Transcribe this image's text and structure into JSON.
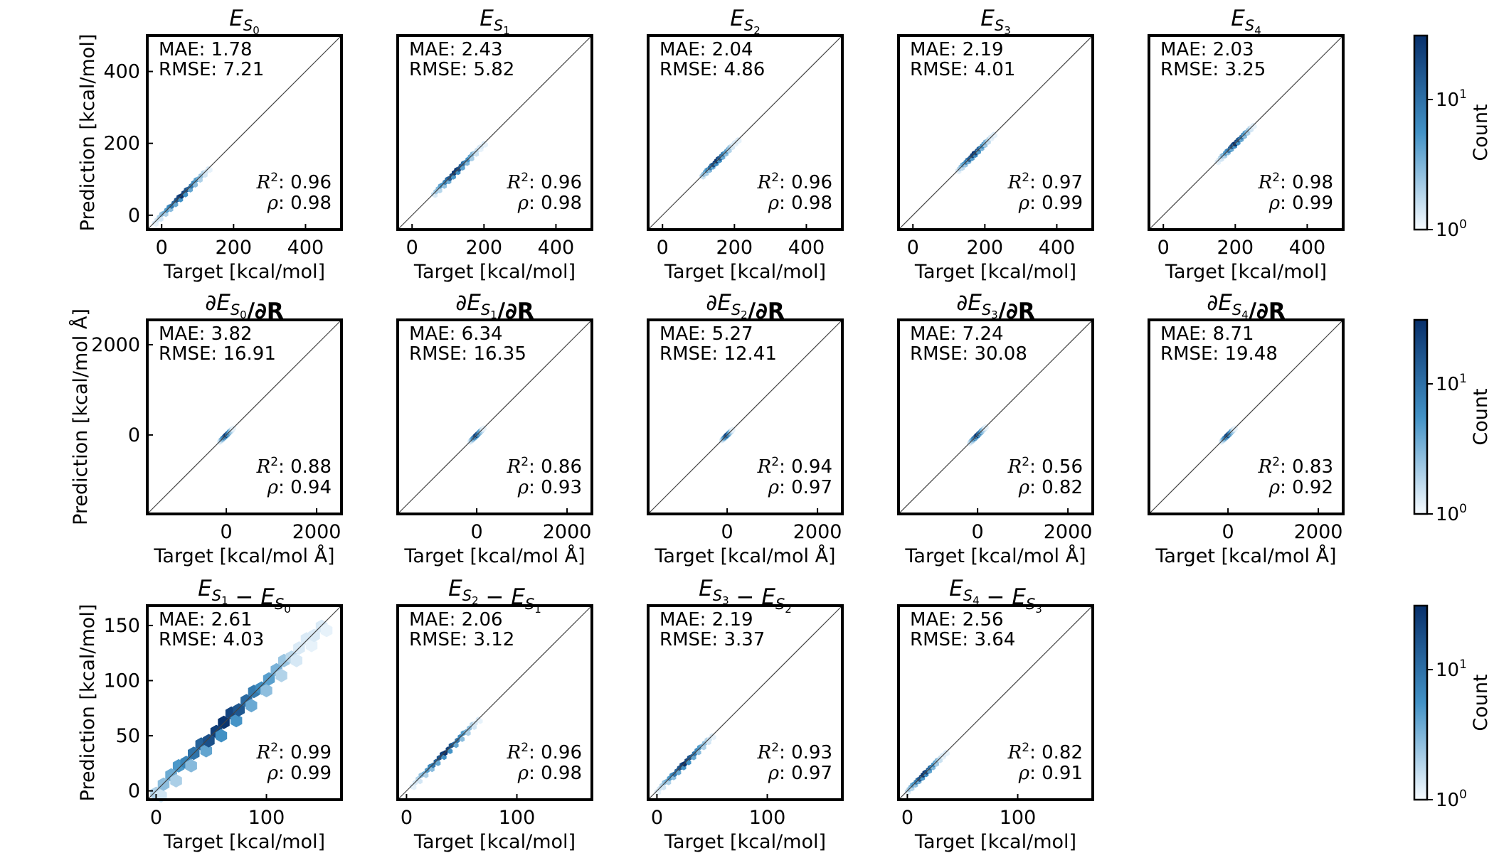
{
  "colors": {
    "low": "#f7fbff",
    "high": "#08306b",
    "mid": "#4292c6",
    "axes": "#000000"
  },
  "colorbar": {
    "label": "Count",
    "tick_high": "10",
    "tick_high_exp": "1",
    "tick_low": "10",
    "tick_low_exp": "0"
  },
  "rows": [
    {
      "ylabel": "Prediction [kcal/mol]",
      "xlabel": "Target [kcal/mol]",
      "lim": [
        -40,
        500
      ],
      "xticks": [
        "0",
        "200",
        "400"
      ],
      "yticks": [
        "0",
        "200",
        "400"
      ],
      "tickvals": [
        0,
        200,
        400
      ]
    },
    {
      "ylabel": "Prediction [kcal/mol Å]",
      "xlabel": "Target [kcal/mol Å]",
      "lim": [
        -1750,
        2550
      ],
      "xticks": [
        "0",
        "2000"
      ],
      "yticks": [
        "0",
        "2000"
      ],
      "tickvals": [
        0,
        2000
      ]
    },
    {
      "ylabel": "Prediction [kcal/mol]",
      "xlabel": "Target [kcal/mol]",
      "lim": [
        -8,
        168
      ],
      "xticks": [
        "0",
        "100"
      ],
      "yticks": [
        "0",
        "50",
        "100",
        "150"
      ],
      "xtickvals": [
        0,
        100
      ],
      "ytickvals": [
        0,
        50,
        100,
        150
      ]
    }
  ],
  "chart_data": [
    {
      "type": "heatmap",
      "panel": "row1-col1",
      "title": [
        "E",
        "S",
        "0",
        ""
      ],
      "mae": "MAE: 1.78",
      "rmse": "RMSE: 7.21",
      "r2": ": 0.96",
      "rho": ": 0.98",
      "center": [
        55,
        50
      ],
      "spread": [
        -20,
        130
      ]
    },
    {
      "type": "heatmap",
      "panel": "row1-col2",
      "title": [
        "E",
        "S",
        "1",
        ""
      ],
      "mae": "MAE: 2.43",
      "rmse": "RMSE: 5.82",
      "r2": ": 0.96",
      "rho": ": 0.98",
      "center": [
        120,
        115
      ],
      "spread": [
        60,
        200
      ]
    },
    {
      "type": "heatmap",
      "panel": "row1-col3",
      "title": [
        "E",
        "S",
        "2",
        ""
      ],
      "mae": "MAE: 2.04",
      "rmse": "RMSE: 4.86",
      "r2": ": 0.96",
      "rho": ": 0.98",
      "center": [
        150,
        150
      ],
      "spread": [
        110,
        210
      ]
    },
    {
      "type": "heatmap",
      "panel": "row1-col4",
      "title": [
        "E",
        "S",
        "3",
        ""
      ],
      "mae": "MAE: 2.19",
      "rmse": "RMSE: 4.01",
      "r2": ": 0.97",
      "rho": ": 0.99",
      "center": [
        170,
        170
      ],
      "spread": [
        125,
        225
      ]
    },
    {
      "type": "heatmap",
      "panel": "row1-col5",
      "title": [
        "E",
        "S",
        "4",
        ""
      ],
      "mae": "MAE: 2.03",
      "rmse": "RMSE: 3.25",
      "r2": ": 0.98",
      "rho": ": 0.99",
      "center": [
        200,
        195
      ],
      "spread": [
        150,
        250
      ]
    },
    {
      "type": "heatmap",
      "panel": "row2-col1",
      "title": [
        "∂E",
        "S",
        "0",
        "/∂R"
      ],
      "mae": "MAE: 3.82",
      "rmse": "RMSE: 16.91",
      "r2": ": 0.88",
      "rho": ": 0.94",
      "center": [
        0,
        0
      ],
      "spread": [
        -150,
        150
      ]
    },
    {
      "type": "heatmap",
      "panel": "row2-col2",
      "title": [
        "∂E",
        "S",
        "1",
        "/∂R"
      ],
      "mae": "MAE: 6.34",
      "rmse": "RMSE: 16.35",
      "r2": ": 0.86",
      "rho": ": 0.93",
      "center": [
        0,
        0
      ],
      "spread": [
        -150,
        150
      ]
    },
    {
      "type": "heatmap",
      "panel": "row2-col3",
      "title": [
        "∂E",
        "S",
        "2",
        "/∂R"
      ],
      "mae": "MAE: 5.27",
      "rmse": "RMSE: 12.41",
      "r2": ": 0.94",
      "rho": ": 0.97",
      "center": [
        0,
        0
      ],
      "spread": [
        -120,
        120
      ]
    },
    {
      "type": "heatmap",
      "panel": "row2-col4",
      "title": [
        "∂E",
        "S",
        "3",
        "/∂R"
      ],
      "mae": "MAE: 7.24",
      "rmse": "RMSE: 30.08",
      "r2": ": 0.56",
      "rho": ": 0.82",
      "center": [
        0,
        0
      ],
      "spread": [
        -180,
        180
      ]
    },
    {
      "type": "heatmap",
      "panel": "row2-col5",
      "title": [
        "∂E",
        "S",
        "4",
        "/∂R"
      ],
      "mae": "MAE: 8.71",
      "rmse": "RMSE: 19.48",
      "r2": ": 0.83",
      "rho": ": 0.92",
      "center": [
        0,
        0
      ],
      "spread": [
        -150,
        150
      ]
    },
    {
      "type": "heatmap",
      "panel": "row3-col1",
      "title": [
        "E",
        "S",
        "1",
        " − E",
        "S",
        "0"
      ],
      "mae": "MAE: 2.61",
      "rmse": "RMSE: 4.03",
      "r2": ": 0.99",
      "rho": ": 0.99",
      "center": [
        60,
        60
      ],
      "spread": [
        0,
        150
      ]
    },
    {
      "type": "heatmap",
      "panel": "row3-col2",
      "title": [
        "E",
        "S",
        "2",
        " − E",
        "S",
        "1"
      ],
      "mae": "MAE: 2.06",
      "rmse": "RMSE: 3.12",
      "r2": ": 0.96",
      "rho": ": 0.98",
      "center": [
        35,
        35
      ],
      "spread": [
        5,
        65
      ]
    },
    {
      "type": "heatmap",
      "panel": "row3-col3",
      "title": [
        "E",
        "S",
        "3",
        " − E",
        "S",
        "2"
      ],
      "mae": "MAE: 2.19",
      "rmse": "RMSE: 3.37",
      "r2": ": 0.93",
      "rho": ": 0.97",
      "center": [
        25,
        25
      ],
      "spread": [
        0,
        50
      ]
    },
    {
      "type": "heatmap",
      "panel": "row3-col4",
      "title": [
        "E",
        "S",
        "4",
        " − E",
        "S",
        "3"
      ],
      "mae": "MAE: 2.56",
      "rmse": "RMSE: 3.64",
      "r2": ": 0.82",
      "rho": ": 0.91",
      "center": [
        15,
        15
      ],
      "spread": [
        0,
        35
      ]
    }
  ]
}
